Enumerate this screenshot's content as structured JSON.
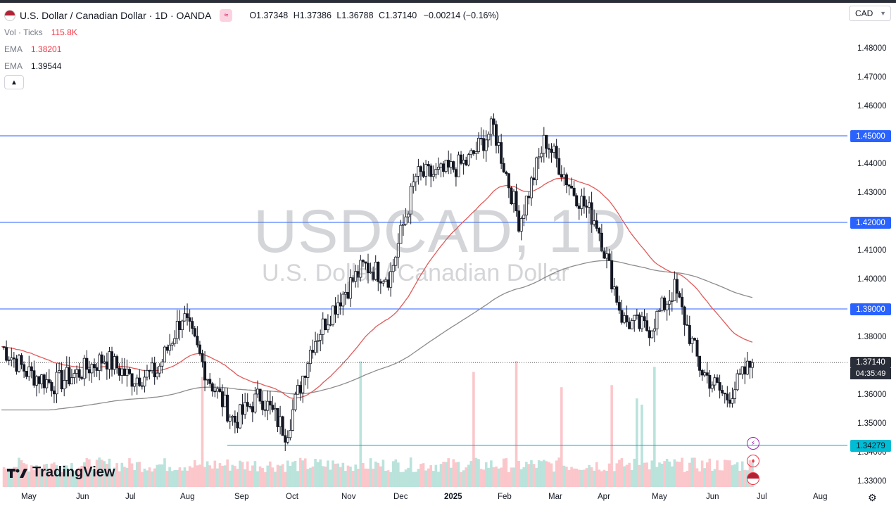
{
  "header": {
    "title": "U.S. Dollar / Canadian Dollar · 1D · OANDA",
    "ohlc": [
      {
        "k": "O",
        "v": "1.37348"
      },
      {
        "k": "H",
        "v": "1.37386"
      },
      {
        "k": "L",
        "v": "1.36788"
      },
      {
        "k": "C",
        "v": "1.37140"
      }
    ],
    "change": "−0.00214 (−0.16%)",
    "vol_label": "Vol · Ticks",
    "vol_value": "115.8K",
    "ema1_label": "EMA",
    "ema1_value": "1.38201",
    "ema2_label": "EMA",
    "ema2_value": "1.39544",
    "collapse_icon": "chevron-up-icon",
    "indicator_icon": "wave-icon"
  },
  "currency_selector": {
    "value": "CAD",
    "icon": "chevron-down-icon"
  },
  "watermark": {
    "symbol": "USDCAD, 1D",
    "name": "U.S. Dollar / Canadian Dollar"
  },
  "branding": {
    "logo_text": "TradingView"
  },
  "colors": {
    "up": "#089981",
    "down": "#f23645",
    "candle": "#131722",
    "hline": "#2962ff",
    "support": "#00bcd4",
    "ema_fast": "#e05a5a",
    "ema_slow": "#8c8c8c",
    "vol_up": "rgba(8,153,129,0.28)",
    "vol_down": "rgba(242,54,69,0.28)"
  },
  "price_tags": {
    "resistance_1": "1.45000",
    "resistance_2": "1.42000",
    "resistance_3": "1.39000",
    "last_price": "1.37140",
    "countdown": "04:35:49",
    "support": "1.34279"
  },
  "events": [
    {
      "icon": "lightning-icon",
      "color": "#9c27b0"
    },
    {
      "icon": "canada-flag-icon",
      "color": "#f23645"
    },
    {
      "icon": "us-flag-icon",
      "color": "#f23645"
    }
  ],
  "settings_icon": "gear-icon",
  "chart_data": {
    "type": "candlestick",
    "title": "U.S. Dollar / Canadian Dollar · 1D · OANDA",
    "y_axis": {
      "ticks": [
        "1.48000",
        "1.47000",
        "1.46000",
        "1.45000",
        "1.44000",
        "1.43000",
        "1.42000",
        "1.41000",
        "1.40000",
        "1.39000",
        "1.38000",
        "1.37000",
        "1.36000",
        "1.35000",
        "1.34000",
        "1.33000"
      ],
      "range": [
        1.3275,
        1.4825
      ]
    },
    "x_axis": {
      "ticks": [
        "May",
        "Jun",
        "Jul",
        "Aug",
        "Sep",
        "Oct",
        "Nov",
        "Dec",
        "2025",
        "Feb",
        "Mar",
        "Apr",
        "May",
        "Jun",
        "Jul",
        "Aug"
      ]
    },
    "horizontal_lines": [
      1.45,
      1.42,
      1.39,
      1.3714,
      1.34279
    ],
    "close_series": [
      {
        "t": "Apr-2024",
        "v": 1.377
      },
      {
        "t": "May-2024",
        "v": 1.368
      },
      {
        "t": "mid-May",
        "v": 1.364
      },
      {
        "t": "Jun-2024",
        "v": 1.368
      },
      {
        "t": "mid-Jun",
        "v": 1.373
      },
      {
        "t": "Jul-2024",
        "v": 1.366
      },
      {
        "t": "mid-Jul",
        "v": 1.368
      },
      {
        "t": "Aug-2024",
        "v": 1.388
      },
      {
        "t": "mid-Aug",
        "v": 1.366
      },
      {
        "t": "Sep-2024",
        "v": 1.351
      },
      {
        "t": "mid-Sep",
        "v": 1.36
      },
      {
        "t": "Oct-2024",
        "v": 1.347
      },
      {
        "t": "mid-Oct",
        "v": 1.378
      },
      {
        "t": "Nov-2024",
        "v": 1.393
      },
      {
        "t": "mid-Nov",
        "v": 1.405
      },
      {
        "t": "Dec-2024",
        "v": 1.401
      },
      {
        "t": "mid-Dec",
        "v": 1.436
      },
      {
        "t": "Jan-2025",
        "v": 1.437
      },
      {
        "t": "mid-Jan",
        "v": 1.441
      },
      {
        "t": "Feb-2025",
        "v": 1.453
      },
      {
        "t": "mid-Feb",
        "v": 1.42
      },
      {
        "t": "Mar-2025",
        "v": 1.449
      },
      {
        "t": "mid-Mar",
        "v": 1.432
      },
      {
        "t": "Apr-2025",
        "v": 1.42
      },
      {
        "t": "mid-Apr",
        "v": 1.386
      },
      {
        "t": "May-2025",
        "v": 1.383
      },
      {
        "t": "mid-May",
        "v": 1.397
      },
      {
        "t": "Jun-2025",
        "v": 1.369
      },
      {
        "t": "mid-Jun",
        "v": 1.359
      },
      {
        "t": "late-Jun",
        "v": 1.3714
      }
    ],
    "series": [
      {
        "name": "EMA",
        "last": 1.38201
      },
      {
        "name": "EMA",
        "last": 1.39544
      }
    ]
  }
}
